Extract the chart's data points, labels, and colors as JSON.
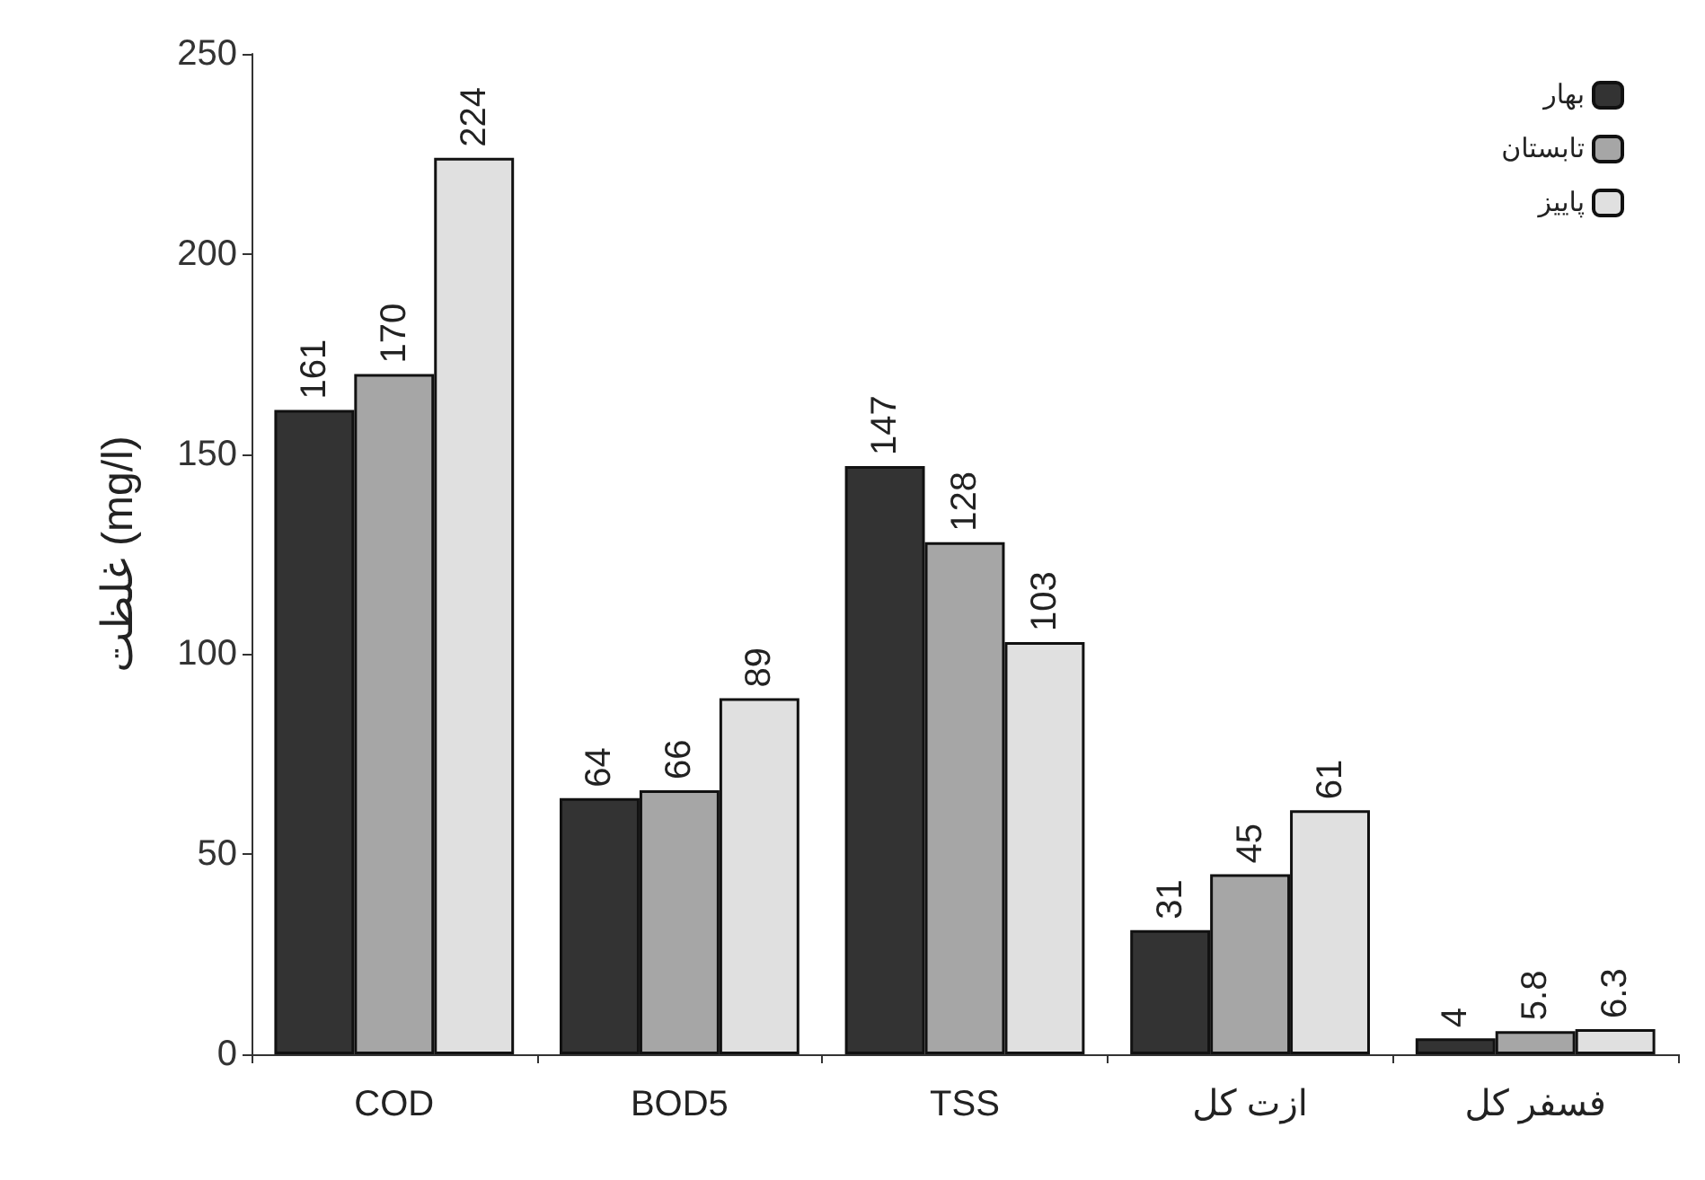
{
  "chart_data": {
    "type": "bar",
    "ylabel": "غلظت (mg/l)",
    "categories": [
      "COD",
      "BOD5",
      "TSS",
      "ازت کل",
      "فسفر کل"
    ],
    "series": [
      {
        "name": "بهار",
        "color": "#333333",
        "values": [
          161,
          64,
          147,
          31,
          4
        ]
      },
      {
        "name": "تابستان",
        "color": "#a6a6a6",
        "values": [
          170,
          66,
          128,
          45,
          5.8
        ]
      },
      {
        "name": "پاییز",
        "color": "#e0e0e0",
        "values": [
          224,
          89,
          103,
          61,
          6.3
        ]
      }
    ],
    "ylim": [
      0,
      250
    ],
    "yticks": [
      0,
      50,
      100,
      150,
      200,
      250
    ],
    "data_labels": true,
    "legend": "top right",
    "grid": false
  }
}
